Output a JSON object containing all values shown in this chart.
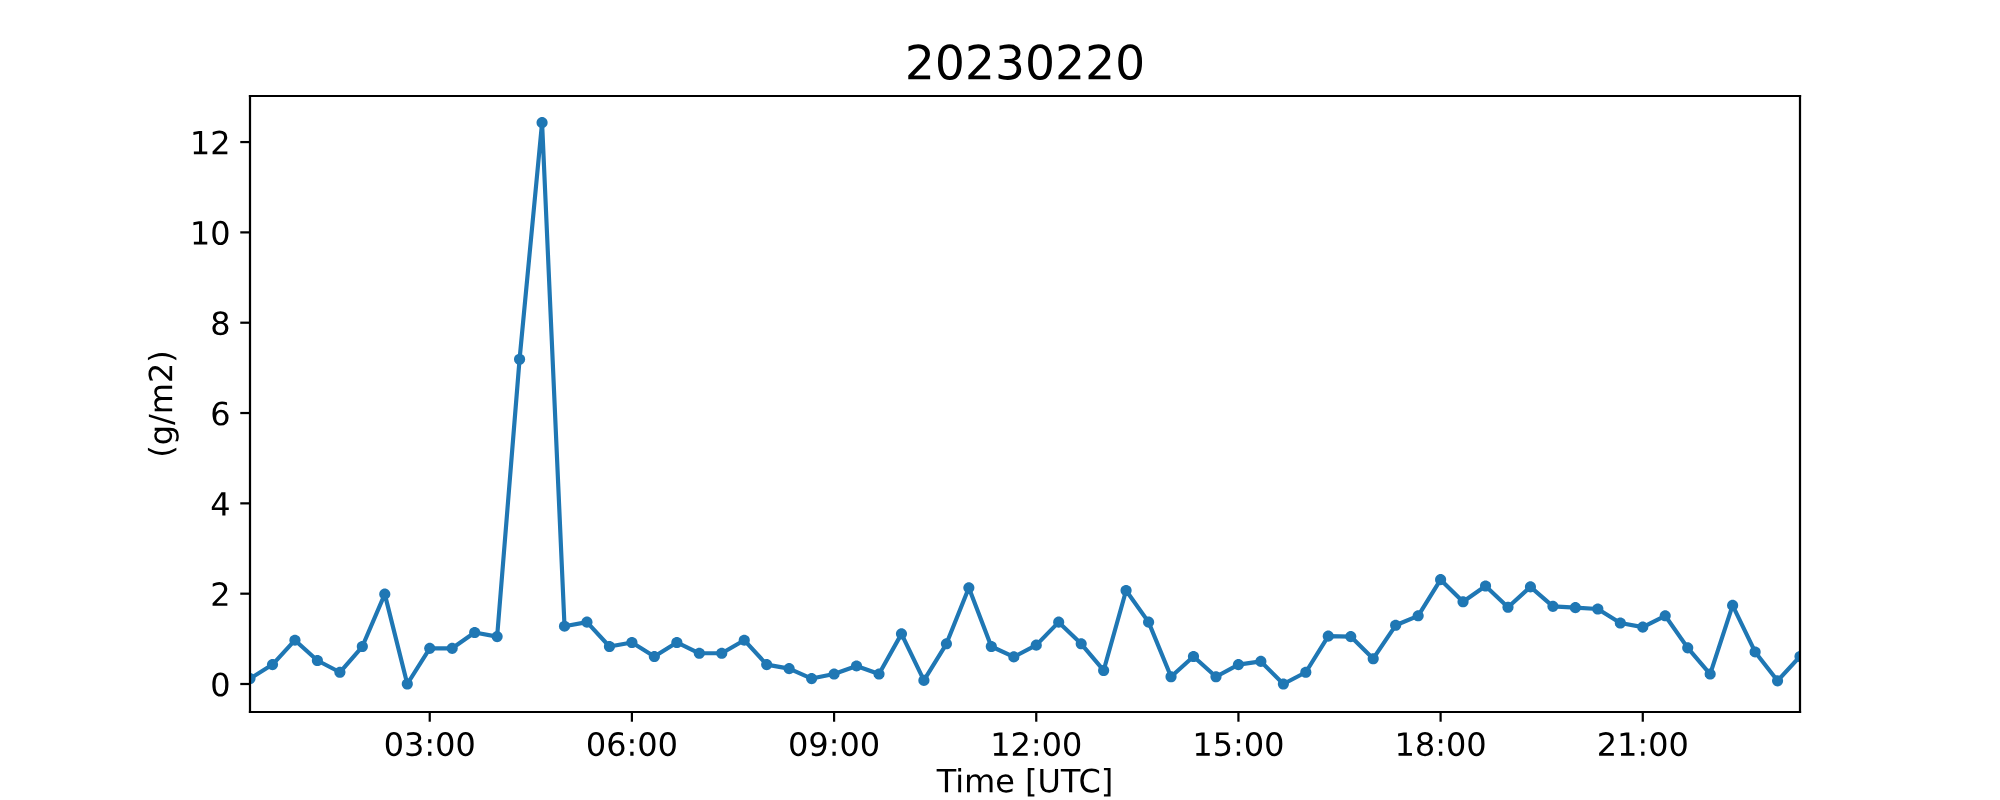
{
  "chart_data": {
    "type": "line",
    "title": "20230220",
    "xlabel": "Time [UTC]",
    "ylabel": "(g/m2)",
    "x": [
      0.333,
      0.667,
      1,
      1.333,
      1.667,
      2,
      2.333,
      2.667,
      3,
      3.333,
      3.667,
      4,
      4.333,
      4.667,
      5,
      5.333,
      5.667,
      6,
      6.333,
      6.667,
      7,
      7.333,
      7.667,
      8,
      8.333,
      8.667,
      9,
      9.333,
      9.667,
      10,
      10.333,
      10.667,
      11,
      11.333,
      11.667,
      12,
      12.333,
      12.667,
      13,
      13.333,
      13.667,
      14,
      14.333,
      14.667,
      15,
      15.333,
      15.667,
      16,
      16.333,
      16.667,
      17,
      17.333,
      17.667,
      18,
      18.333,
      18.667,
      19,
      19.333,
      19.667,
      20,
      20.333,
      20.667,
      21,
      21.333,
      21.667,
      22,
      22.333,
      22.667,
      23,
      23.333
    ],
    "series": [
      {
        "color": "#1f77b4",
        "values": [
          0.12,
          0.43,
          0.97,
          0.52,
          0.26,
          0.83,
          1.99,
          0.0,
          0.79,
          0.79,
          1.14,
          1.05,
          7.19,
          12.43,
          1.28,
          1.37,
          0.83,
          0.92,
          0.61,
          0.92,
          0.68,
          0.68,
          0.97,
          0.43,
          0.34,
          0.12,
          0.22,
          0.4,
          0.22,
          1.11,
          0.08,
          0.89,
          2.13,
          0.83,
          0.6,
          0.86,
          1.37,
          0.89,
          0.3,
          2.07,
          1.37,
          0.16,
          0.61,
          0.16,
          0.43,
          0.5,
          0.0,
          0.26,
          1.06,
          1.05,
          0.56,
          1.3,
          1.51,
          2.31,
          1.82,
          2.17,
          1.7,
          2.15,
          1.72,
          1.69,
          1.66,
          1.35,
          1.26,
          1.51,
          0.8,
          0.22,
          1.74,
          0.71,
          0.07,
          0.61
        ]
      }
    ],
    "xlim": [
      0.333,
      23.333
    ],
    "xticks": [
      {
        "value": 3,
        "label": "03:00"
      },
      {
        "value": 6,
        "label": "06:00"
      },
      {
        "value": 9,
        "label": "09:00"
      },
      {
        "value": 12,
        "label": "12:00"
      },
      {
        "value": 15,
        "label": "15:00"
      },
      {
        "value": 18,
        "label": "18:00"
      },
      {
        "value": 21,
        "label": "21:00"
      }
    ],
    "ylim": [
      -0.62,
      13.02
    ],
    "yticks": [
      0,
      2,
      4,
      6,
      8,
      10,
      12
    ],
    "grid": false,
    "marker": "circle",
    "line_style": "solid"
  }
}
